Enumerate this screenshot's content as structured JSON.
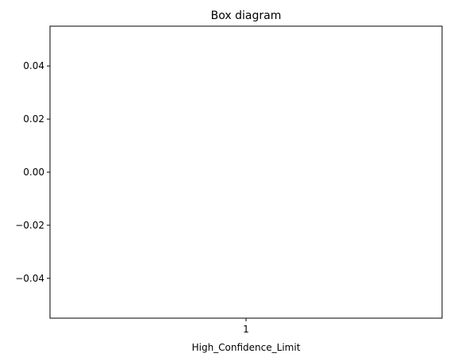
{
  "chart_data": {
    "type": "box",
    "title": "Box diagram",
    "xlabel": "High_Confidence_Limit",
    "ylabel": "",
    "categories": [
      "1"
    ],
    "series": [
      {
        "values": []
      }
    ],
    "ylim": [
      -0.055,
      0.055
    ],
    "yticks": [
      -0.04,
      -0.02,
      0.0,
      0.02,
      0.04
    ],
    "ytick_labels": [
      "−0.04",
      "−0.02",
      "0.00",
      "0.02",
      "0.04"
    ],
    "grid": false,
    "legend": "none"
  }
}
